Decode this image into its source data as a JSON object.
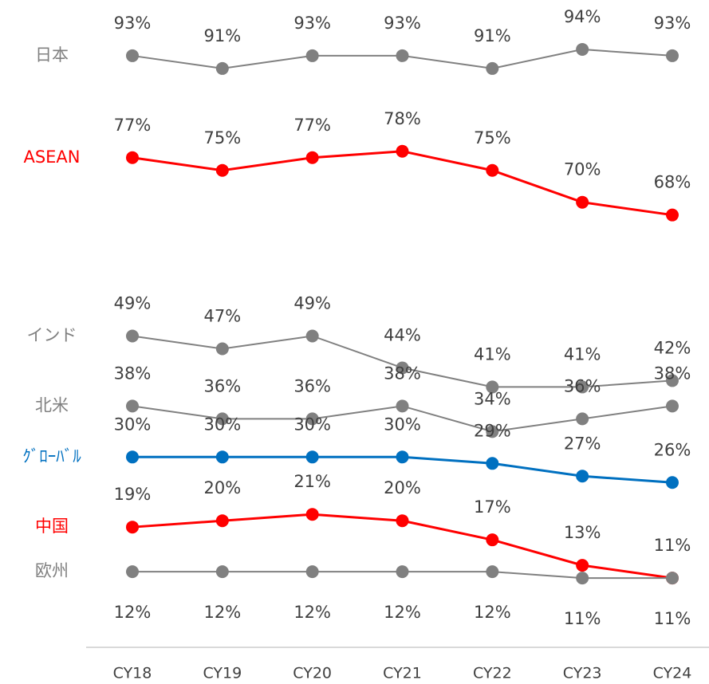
{
  "chart_data": {
    "type": "line",
    "categories": [
      "CY18",
      "CY19",
      "CY20",
      "CY21",
      "CY22",
      "CY23",
      "CY24"
    ],
    "ylim": [
      0,
      100
    ],
    "series": [
      {
        "name": "日本",
        "color": "#808080",
        "values": [
          93,
          91,
          93,
          93,
          91,
          94,
          93
        ],
        "value_labels": [
          "93%",
          "91%",
          "93%",
          "93%",
          "91%",
          "94%",
          "93%"
        ]
      },
      {
        "name": "ASEAN",
        "color": "#ff0000",
        "values": [
          77,
          75,
          77,
          78,
          75,
          70,
          68
        ],
        "value_labels": [
          "77%",
          "75%",
          "77%",
          "78%",
          "75%",
          "70%",
          "68%"
        ]
      },
      {
        "name": "インド",
        "color": "#808080",
        "values": [
          49,
          47,
          49,
          44,
          41,
          41,
          42
        ],
        "value_labels": [
          "49%",
          "47%",
          "49%",
          "44%",
          "41%",
          "41%",
          "42%"
        ]
      },
      {
        "name": "北米",
        "color": "#808080",
        "values": [
          38,
          36,
          36,
          38,
          34,
          36,
          38
        ],
        "value_labels": [
          "38%",
          "36%",
          "36%",
          "38%",
          "34%",
          "36%",
          "38%"
        ]
      },
      {
        "name": "ｸﾞﾛｰﾊﾞﾙ",
        "color": "#0070c0",
        "values": [
          30,
          30,
          30,
          30,
          29,
          27,
          26
        ],
        "value_labels": [
          "30%",
          "30%",
          "30%",
          "30%",
          "29%",
          "27%",
          "26%"
        ]
      },
      {
        "name": "中国",
        "color": "#ff0000",
        "values": [
          19,
          20,
          21,
          20,
          17,
          13,
          11
        ],
        "value_labels": [
          "19%",
          "20%",
          "21%",
          "20%",
          "17%",
          "13%",
          "11%"
        ]
      },
      {
        "name": "欧州",
        "color": "#808080",
        "values": [
          12,
          12,
          12,
          12,
          12,
          11,
          11
        ],
        "value_labels": [
          "12%",
          "12%",
          "12%",
          "12%",
          "12%",
          "11%",
          "11%"
        ],
        "label_position": "below"
      }
    ]
  }
}
